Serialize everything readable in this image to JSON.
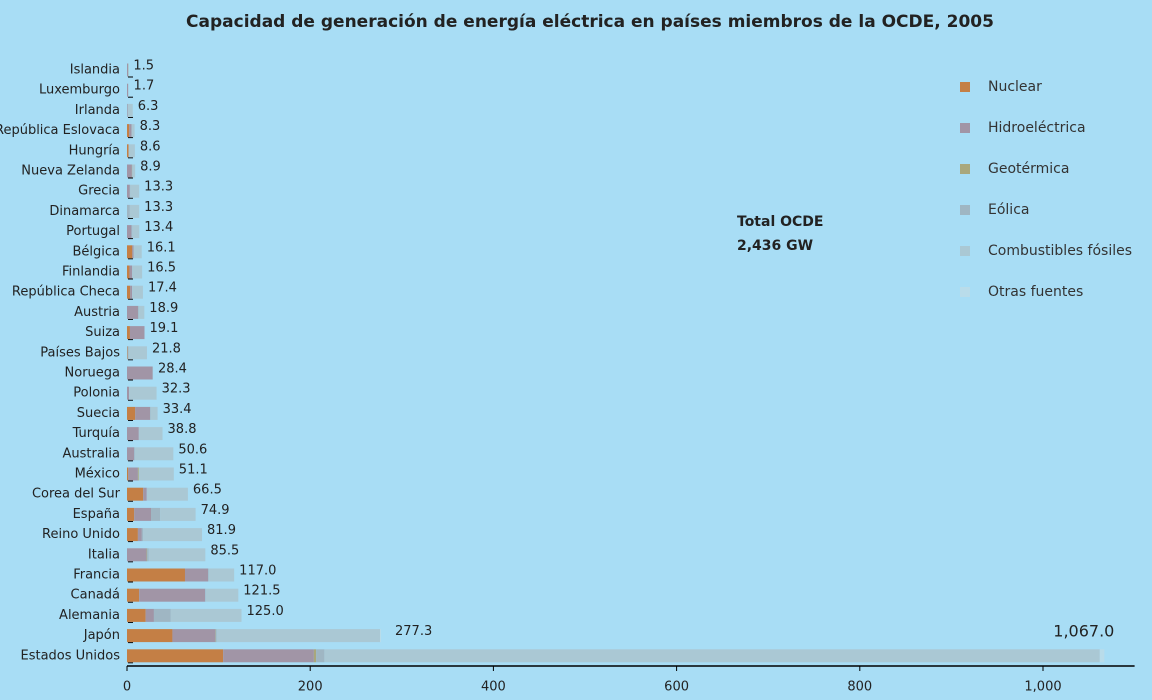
{
  "chart_data": {
    "type": "stacked_bar_horizontal",
    "title": "Capacidad de generación de energía eléctrica en países miembros de la OCDE, 2005",
    "annotation": [
      "Total OCDE",
      "2,436 GW"
    ],
    "categories": [
      "Islandia",
      "Luxemburgo",
      "Irlanda",
      "República Eslovaca",
      "Hungría",
      "Nueva Zelanda",
      "Grecia",
      "Dinamarca",
      "Portugal",
      "Bélgica",
      "Finlandia",
      "República Checa",
      "Austria",
      "Suiza",
      "Países Bajos",
      "Noruega",
      "Polonia",
      "Suecia",
      "Turquía",
      "Australia",
      "México",
      "Corea del Sur",
      "España",
      "Reino Unido",
      "Italia",
      "Francia",
      "Canadá",
      "Alemania",
      "Japón",
      "Estados Unidos"
    ],
    "series": [
      {
        "name": "Nuclear",
        "color": "#c47f45",
        "values": [
          0,
          0,
          0,
          2.5,
          1.8,
          0,
          0,
          0,
          0,
          5.8,
          2.7,
          3.5,
          0,
          3.2,
          0.5,
          0,
          0,
          9.0,
          0,
          0,
          1.4,
          17.7,
          7.9,
          11.9,
          0,
          63.3,
          13.3,
          20.4,
          49.6,
          105.0
        ]
      },
      {
        "name": "Hidroeléctrica",
        "color": "#a195a6",
        "values": [
          1.2,
          1.1,
          0.5,
          2.4,
          0,
          5.3,
          3.1,
          0,
          4.8,
          1.4,
          3.0,
          2.1,
          12.0,
          15.9,
          0,
          27.9,
          2.3,
          16.2,
          12.9,
          7.9,
          10.5,
          3.9,
          18.3,
          4.3,
          21.4,
          25.3,
          72.0,
          9.0,
          46.9,
          99.0
        ]
      },
      {
        "name": "Geotérmica",
        "color": "#a9a77c",
        "values": [
          0.3,
          0,
          0,
          0,
          0,
          0.4,
          0,
          0,
          0,
          0,
          0,
          0,
          0,
          0,
          0,
          0,
          0,
          0,
          0,
          0,
          1.0,
          0,
          0,
          0,
          0.7,
          0,
          0,
          0,
          0.5,
          2.5
        ]
      },
      {
        "name": "Eólica",
        "color": "#9fb6c3",
        "values": [
          0,
          0,
          0.5,
          0,
          0,
          0.2,
          0.5,
          3.1,
          1.0,
          0.2,
          0,
          0,
          0.8,
          0,
          1.2,
          0.3,
          0,
          0.5,
          0,
          0.7,
          0,
          0,
          10.0,
          1.3,
          1.7,
          0.8,
          0.7,
          18.4,
          1.0,
          9.0
        ]
      },
      {
        "name": "Combustibles fósiles",
        "color": "#aac8d4",
        "values": [
          0,
          0.6,
          5.3,
          3.4,
          6.8,
          3.0,
          9.7,
          10.2,
          7.6,
          8.7,
          10.8,
          11.8,
          6.1,
          0,
          20.1,
          0.2,
          30.0,
          7.7,
          25.9,
          42.0,
          38.2,
          44.9,
          38.7,
          64.4,
          61.7,
          27.6,
          35.5,
          77.2,
          178.3,
          846.5
        ]
      },
      {
        "name": "Otras fuentes",
        "color": "#b9dcea",
        "values": [
          0,
          0,
          0,
          0,
          0,
          0,
          0,
          0,
          0,
          0,
          0,
          0,
          0,
          0,
          0,
          0,
          0,
          0,
          0,
          0,
          0,
          0,
          0,
          0,
          0,
          0,
          0,
          0,
          1.0,
          5.0
        ]
      }
    ],
    "totals": [
      1.5,
      1.7,
      6.3,
      8.3,
      8.6,
      8.9,
      13.3,
      13.3,
      13.4,
      16.1,
      16.5,
      17.4,
      18.9,
      19.1,
      21.8,
      28.4,
      32.3,
      33.4,
      38.8,
      50.6,
      51.1,
      66.5,
      74.9,
      81.9,
      85.5,
      117,
      121.5,
      125,
      277.3,
      1067
    ],
    "total_labels": [
      "1.5",
      "1.7",
      "6.3",
      "8.3",
      "8.6",
      "8.9",
      "13.3",
      "13.3",
      "13.4",
      "16.1",
      "16.5",
      "17.4",
      "18.9",
      "19.1",
      "21.8",
      "28.4",
      "32.3",
      "33.4",
      "38.8",
      "50.6",
      "51.1",
      "66.5",
      "74.9",
      "81.9",
      "85.5",
      "117.0",
      "121.5",
      "125.0",
      "277.3",
      "1,067.0"
    ],
    "xlim": [
      0,
      1100
    ],
    "xticks": [
      0,
      200,
      400,
      600,
      800,
      {
        "value": 1000,
        "label": "1,000"
      }
    ],
    "legend": "top-right"
  }
}
